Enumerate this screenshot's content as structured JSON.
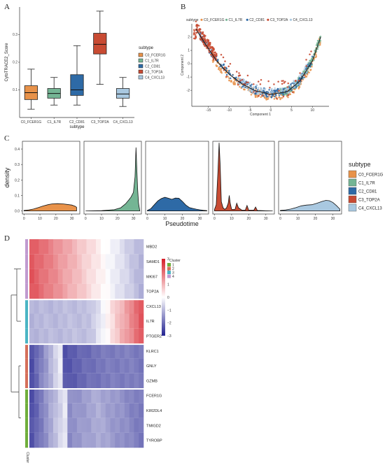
{
  "panels": [
    "A",
    "B",
    "C",
    "D"
  ],
  "colors": {
    "C0_FCER1G": "#e8924a",
    "C1_IL7R": "#74b594",
    "C2_CD81": "#2e6aa6",
    "C3_TOP2A": "#c84b33",
    "C4_CXCL13": "#a9c8e0"
  },
  "chart_data": [
    {
      "panel": "A",
      "type": "box",
      "ylabel": "CytoTRACE2_Score",
      "xlabel": "subtype",
      "yticks": [
        0.1,
        0.2,
        0.3
      ],
      "ylim": [
        0.0,
        0.4
      ],
      "legend_title": "subtype",
      "legend_position": "right",
      "categories": [
        "C0_FCER1G",
        "C1_IL7R",
        "C2_CD81",
        "C3_TOP2A",
        "C4_CXCL13"
      ],
      "boxes": [
        {
          "min": 0.03,
          "q1": 0.065,
          "median": 0.09,
          "q3": 0.115,
          "max": 0.175
        },
        {
          "min": 0.045,
          "q1": 0.07,
          "median": 0.087,
          "q3": 0.105,
          "max": 0.145
        },
        {
          "min": 0.045,
          "q1": 0.08,
          "median": 0.1,
          "q3": 0.155,
          "max": 0.26
        },
        {
          "min": 0.12,
          "q1": 0.23,
          "median": 0.265,
          "q3": 0.305,
          "max": 0.385
        },
        {
          "min": 0.04,
          "q1": 0.07,
          "median": 0.085,
          "q3": 0.105,
          "max": 0.145
        }
      ]
    },
    {
      "panel": "B",
      "type": "scatter",
      "legend_title": "subtype",
      "legend_position": "top",
      "series_names": [
        "C0_FCER1G",
        "C1_IL7R",
        "C2_CD81",
        "C3_TOP2A",
        "C4_CXCL13"
      ],
      "xlabel": "Component 1",
      "ylabel": "Component 2",
      "xticks": [
        -15,
        -10,
        -5,
        0,
        5,
        10
      ],
      "yticks": [
        -2,
        -1,
        0,
        1,
        2
      ],
      "xlim": [
        -19,
        14
      ],
      "ylim": [
        -3.2,
        3.0
      ],
      "trajectory": [
        [
          -18,
          2.6
        ],
        [
          -16,
          1.6
        ],
        [
          -13,
          0.2
        ],
        [
          -10,
          -0.8
        ],
        [
          -7,
          -1.5
        ],
        [
          -4,
          -2.0
        ],
        [
          0,
          -2.3
        ],
        [
          4,
          -2.1
        ],
        [
          7,
          -1.3
        ],
        [
          10,
          0.2
        ],
        [
          12,
          2.0
        ]
      ]
    },
    {
      "panel": "C",
      "type": "area",
      "ylabel": "density",
      "xlabel": "Pseudotime",
      "xticks": [
        0,
        10,
        20,
        30
      ],
      "yticks": [
        0.0,
        0.1,
        0.2,
        0.3,
        0.4
      ],
      "xlim": [
        -1,
        35
      ],
      "ylim": [
        -0.02,
        0.45
      ],
      "legend_title": "subtype",
      "legend_position": "right",
      "series": [
        {
          "name": "C0_FCER1G",
          "x": [
            0,
            3,
            6,
            9,
            12,
            15,
            18,
            21,
            24,
            27,
            30,
            32,
            33
          ],
          "y": [
            0.003,
            0.006,
            0.012,
            0.022,
            0.032,
            0.04,
            0.046,
            0.047,
            0.046,
            0.042,
            0.038,
            0.03,
            0.024
          ]
        },
        {
          "name": "C1_IL7R",
          "x": [
            0,
            10,
            18,
            22,
            25,
            27,
            28.5,
            30,
            31,
            31.6,
            32,
            32.6,
            33.2,
            34
          ],
          "y": [
            0.0,
            0.002,
            0.008,
            0.02,
            0.045,
            0.07,
            0.09,
            0.12,
            0.22,
            0.41,
            0.3,
            0.15,
            0.05,
            0.0
          ]
        },
        {
          "name": "C2_CD81",
          "x": [
            0,
            2,
            4,
            6,
            8,
            10,
            12,
            14,
            16,
            18,
            20,
            22,
            24,
            26,
            28,
            30,
            32,
            34
          ],
          "y": [
            0.003,
            0.015,
            0.04,
            0.065,
            0.08,
            0.088,
            0.082,
            0.075,
            0.083,
            0.082,
            0.062,
            0.038,
            0.022,
            0.016,
            0.011,
            0.007,
            0.004,
            0.002
          ]
        },
        {
          "name": "C3_TOP2A",
          "x": [
            0,
            1,
            2,
            2.7,
            3.3,
            4,
            5,
            6,
            7,
            8,
            8.6,
            9.2,
            10,
            12,
            13,
            14,
            16,
            18,
            19,
            20,
            23,
            24,
            25,
            28,
            30,
            34
          ],
          "y": [
            0.01,
            0.04,
            0.25,
            0.44,
            0.3,
            0.06,
            0.02,
            0.01,
            0.02,
            0.05,
            0.1,
            0.05,
            0.01,
            0.01,
            0.05,
            0.02,
            0.005,
            0.005,
            0.035,
            0.005,
            0.005,
            0.025,
            0.003,
            0.002,
            0.001,
            0.0
          ]
        },
        {
          "name": "C4_CXCL13",
          "x": [
            0,
            3,
            6,
            9,
            12,
            15,
            18,
            21,
            24,
            26,
            28,
            30,
            32,
            34
          ],
          "y": [
            0.003,
            0.006,
            0.012,
            0.022,
            0.033,
            0.038,
            0.04,
            0.05,
            0.062,
            0.068,
            0.066,
            0.055,
            0.035,
            0.012
          ]
        }
      ]
    },
    {
      "panel": "D",
      "type": "heatmap",
      "legend_title": "Cluster",
      "cluster_legend_labels": [
        "1",
        "2",
        "3",
        "4"
      ],
      "cluster_colors": [
        "#6fae3b",
        "#d56f5a",
        "#4ab5c4",
        "#c09ad0"
      ],
      "color_ticks": [
        3,
        2,
        1,
        0,
        -1,
        -2,
        -3
      ],
      "color_range": [
        -3,
        3
      ],
      "column_axis_label": "Cluster",
      "rows": [
        {
          "gene": "MBD2",
          "cluster": 4
        },
        {
          "gene": "SAMD1",
          "cluster": 4
        },
        {
          "gene": "MKI67",
          "cluster": 4
        },
        {
          "gene": "TOP2A",
          "cluster": 4
        },
        {
          "gene": "CXCL13",
          "cluster": 3
        },
        {
          "gene": "IL7R",
          "cluster": 3
        },
        {
          "gene": "PTGER2",
          "cluster": 3
        },
        {
          "gene": "KLRC1",
          "cluster": 2
        },
        {
          "gene": "GNLY",
          "cluster": 2
        },
        {
          "gene": "GZMB",
          "cluster": 2
        },
        {
          "gene": "FCER1G",
          "cluster": 1
        },
        {
          "gene": "KIR2DL4",
          "cluster": 1
        },
        {
          "gene": "TMIGD2",
          "cluster": 1
        },
        {
          "gene": "TYROBP",
          "cluster": 1
        }
      ]
    }
  ]
}
